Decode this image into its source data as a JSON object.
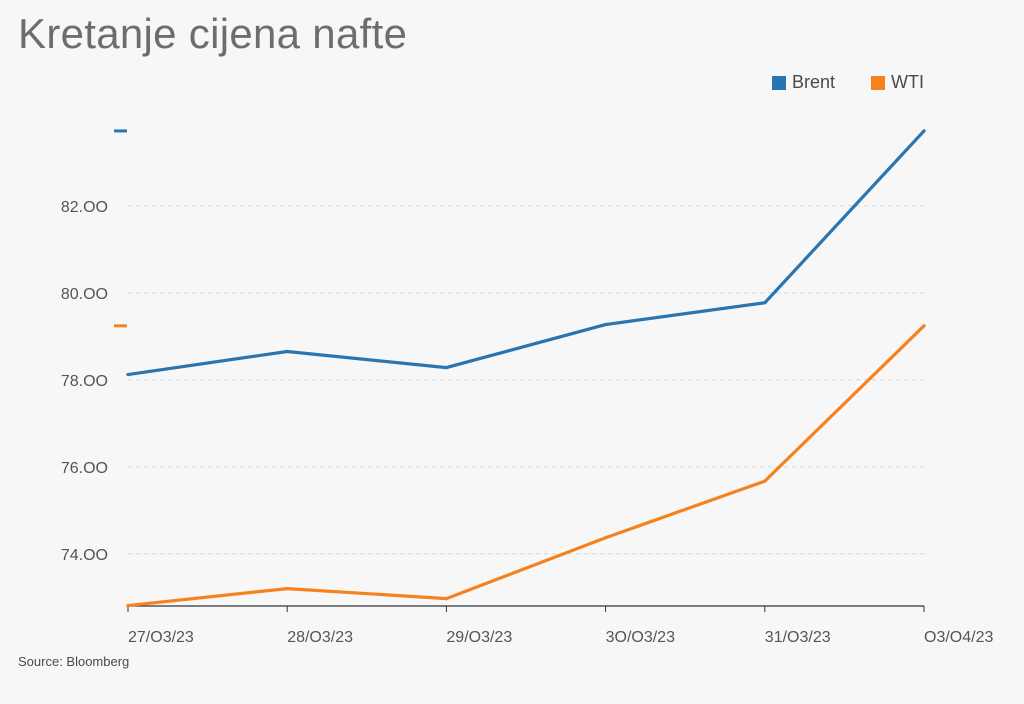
{
  "title": "Kretanje cijena nafte",
  "source": "Source: Bloomberg",
  "colors": {
    "brent": "#2a74b0",
    "wti": "#f5821f",
    "grid": "#d6d6d6",
    "axis": "#333333",
    "tick_text": "#555555"
  },
  "chart_data": {
    "type": "line",
    "title": "Kretanje cijena nafte",
    "x": [
      "27/03/23",
      "28/03/23",
      "29/03/23",
      "30/03/23",
      "31/03/23",
      "03/04/23"
    ],
    "x_tick_labels": [
      "27/O3/23",
      "28/O3/23",
      "29/O3/23",
      "3O/O3/23",
      "31/O3/23",
      "O3/O4/23"
    ],
    "y_ticks": [
      74,
      76,
      78,
      80,
      82
    ],
    "y_tick_labels": [
      "74.OO",
      "76.OO",
      "78.OO",
      "80.OO",
      "82.OO"
    ],
    "ylim": [
      72.8,
      84.5
    ],
    "grid": true,
    "legend_position": "top-right",
    "series": [
      {
        "name": "Brent",
        "color": "#2a74b0",
        "values": [
          78.12,
          78.65,
          78.28,
          79.27,
          79.77,
          83.72
        ]
      },
      {
        "name": "WTI",
        "color": "#f5821f",
        "values": [
          72.81,
          73.2,
          72.97,
          74.37,
          75.67,
          79.24
        ]
      }
    ]
  }
}
